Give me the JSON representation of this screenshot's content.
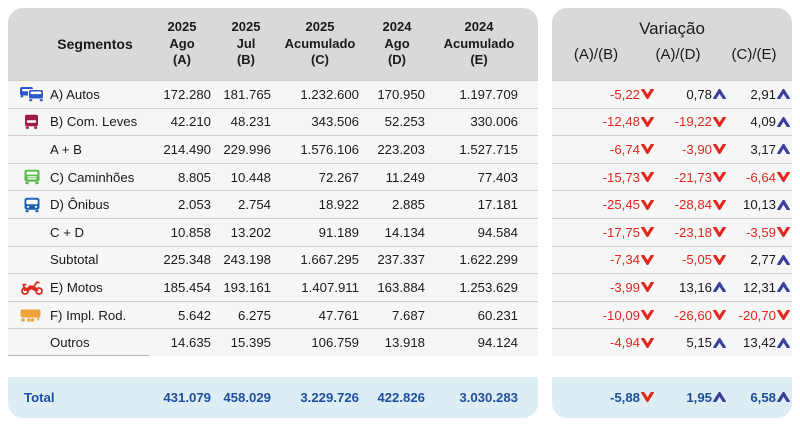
{
  "colors": {
    "header_bg": "#d9d9d9",
    "row_bg": "#f6f6f6",
    "row_separator": "#cfcfcf",
    "total_bg": "#ddedf4",
    "total_text": "#1f4e9e",
    "negative": "#e0281e",
    "up_arrow": "#3b3f9c",
    "down_arrow": "#e0281e"
  },
  "icon_colors": {
    "cars-icon": "#2e55c6",
    "van-icon": "#9c1b42",
    "truck-icon": "#57b847",
    "bus-icon": "#1d5fae",
    "motorcycle-icon": "#da2a1d",
    "trailer-icon": "#f0a23c"
  },
  "chart_data": {
    "type": "table",
    "segment_column_header": "Segmentos",
    "period_columns": [
      [
        "2025",
        "Ago",
        "(A)"
      ],
      [
        "2025",
        "Jul",
        "(B)"
      ],
      [
        "2025",
        "Acumulado",
        "(C)"
      ],
      [
        "2024",
        "Ago",
        "(D)"
      ],
      [
        "2024",
        "Acumulado",
        "(E)"
      ]
    ],
    "variation_title": "Variação",
    "variation_columns": [
      "(A)/(B)",
      "(A)/(D)",
      "(C)/(E)"
    ],
    "rows": [
      {
        "label": "A) Autos",
        "icon": "cars-icon",
        "values": [
          "172.280",
          "181.765",
          "1.232.600",
          "170.950",
          "1.197.709"
        ],
        "variation": [
          {
            "value": "-5,22",
            "direction": "down"
          },
          {
            "value": "0,78",
            "direction": "up"
          },
          {
            "value": "2,91",
            "direction": "up"
          }
        ]
      },
      {
        "label": "B) Com. Leves",
        "icon": "van-icon",
        "values": [
          "42.210",
          "48.231",
          "343.506",
          "52.253",
          "330.006"
        ],
        "variation": [
          {
            "value": "-12,48",
            "direction": "down"
          },
          {
            "value": "-19,22",
            "direction": "down"
          },
          {
            "value": "4,09",
            "direction": "up"
          }
        ]
      },
      {
        "label": "A + B",
        "values": [
          "214.490",
          "229.996",
          "1.576.106",
          "223.203",
          "1.527.715"
        ],
        "variation": [
          {
            "value": "-6,74",
            "direction": "down"
          },
          {
            "value": "-3,90",
            "direction": "down"
          },
          {
            "value": "3,17",
            "direction": "up"
          }
        ]
      },
      {
        "label": "C) Caminhões",
        "icon": "truck-icon",
        "values": [
          "8.805",
          "10.448",
          "72.267",
          "11.249",
          "77.403"
        ],
        "variation": [
          {
            "value": "-15,73",
            "direction": "down"
          },
          {
            "value": "-21,73",
            "direction": "down"
          },
          {
            "value": "-6,64",
            "direction": "down"
          }
        ]
      },
      {
        "label": "D) Ônibus",
        "icon": "bus-icon",
        "values": [
          "2.053",
          "2.754",
          "18.922",
          "2.885",
          "17.181"
        ],
        "variation": [
          {
            "value": "-25,45",
            "direction": "down"
          },
          {
            "value": "-28,84",
            "direction": "down"
          },
          {
            "value": "10,13",
            "direction": "up"
          }
        ]
      },
      {
        "label": "C + D",
        "values": [
          "10.858",
          "13.202",
          "91.189",
          "14.134",
          "94.584"
        ],
        "variation": [
          {
            "value": "-17,75",
            "direction": "down"
          },
          {
            "value": "-23,18",
            "direction": "down"
          },
          {
            "value": "-3,59",
            "direction": "down"
          }
        ]
      },
      {
        "label": "Subtotal",
        "values": [
          "225.348",
          "243.198",
          "1.667.295",
          "237.337",
          "1.622.299"
        ],
        "variation": [
          {
            "value": "-7,34",
            "direction": "down"
          },
          {
            "value": "-5,05",
            "direction": "down"
          },
          {
            "value": "2,77",
            "direction": "up"
          }
        ]
      },
      {
        "label": "E) Motos",
        "icon": "motorcycle-icon",
        "values": [
          "185.454",
          "193.161",
          "1.407.911",
          "163.884",
          "1.253.629"
        ],
        "variation": [
          {
            "value": "-3,99",
            "direction": "down"
          },
          {
            "value": "13,16",
            "direction": "up"
          },
          {
            "value": "12,31",
            "direction": "up"
          }
        ]
      },
      {
        "label": "F) Impl. Rod.",
        "icon": "trailer-icon",
        "values": [
          "5.642",
          "6.275",
          "47.761",
          "7.687",
          "60.231"
        ],
        "variation": [
          {
            "value": "-10,09",
            "direction": "down"
          },
          {
            "value": "-26,60",
            "direction": "down"
          },
          {
            "value": "-20,70",
            "direction": "down"
          }
        ]
      },
      {
        "label": "Outros",
        "partial_underline": true,
        "values": [
          "14.635",
          "15.395",
          "106.759",
          "13.918",
          "94.124"
        ],
        "variation": [
          {
            "value": "-4,94",
            "direction": "down"
          },
          {
            "value": "5,15",
            "direction": "up"
          },
          {
            "value": "13,42",
            "direction": "up"
          }
        ]
      }
    ],
    "total_row": {
      "label": "Total",
      "values": [
        "431.079",
        "458.029",
        "3.229.726",
        "422.826",
        "3.030.283"
      ],
      "variation": [
        {
          "value": "-5,88",
          "direction": "down"
        },
        {
          "value": "1,95",
          "direction": "up"
        },
        {
          "value": "6,58",
          "direction": "up"
        }
      ]
    }
  }
}
